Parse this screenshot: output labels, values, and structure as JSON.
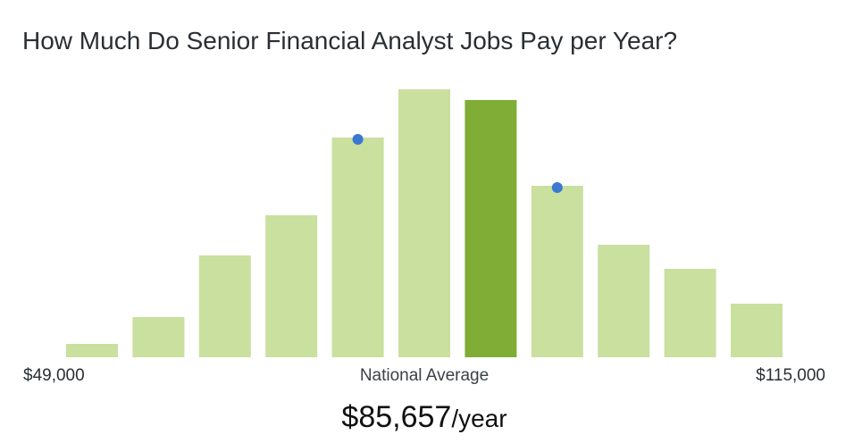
{
  "title": "How Much Do Senior Financial Analyst Jobs Pay per Year?",
  "chart_data": {
    "type": "bar",
    "x_range_labels": {
      "min": "$49,000",
      "max": "$115,000"
    },
    "center_label": "National Average",
    "average": {
      "amount": "$85,657",
      "unit": "/year"
    },
    "values": [
      5,
      15,
      38,
      53,
      82,
      100,
      96,
      64,
      42,
      33,
      20
    ],
    "highlight_index": 6,
    "markers_on": [
      4,
      7
    ],
    "ylim": [
      0,
      100
    ],
    "colors": {
      "bar": "#c9e09f",
      "highlight": "#80ad36",
      "marker": "#3a78d4"
    }
  }
}
